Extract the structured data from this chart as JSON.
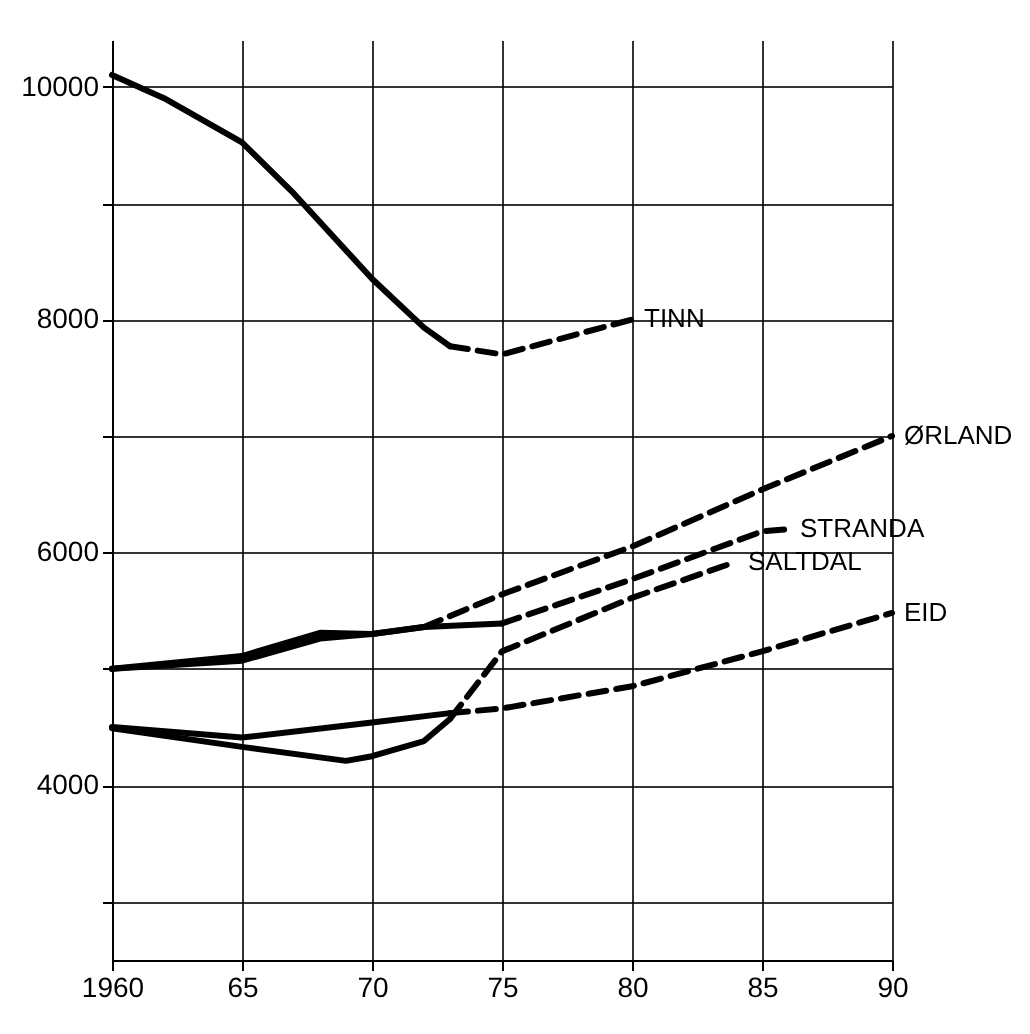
{
  "chart_data": {
    "type": "line",
    "xlim": [
      1960,
      1990
    ],
    "xticks": [
      {
        "value": 1960,
        "label": "1960"
      },
      {
        "value": 1965,
        "label": "65"
      },
      {
        "value": 1970,
        "label": "70"
      },
      {
        "value": 1975,
        "label": "75"
      },
      {
        "value": 1980,
        "label": "80"
      },
      {
        "value": 1985,
        "label": "85"
      },
      {
        "value": 1990,
        "label": "90"
      }
    ],
    "ylim": [
      2500,
      10400
    ],
    "yticks": [
      {
        "value": 3000,
        "label": null
      },
      4000,
      {
        "value": 5000,
        "label": null
      },
      6000,
      {
        "value": 7000,
        "label": null
      },
      8000,
      {
        "value": 9000,
        "label": null
      },
      10000
    ],
    "grid": true,
    "marker": "none",
    "series": [
      {
        "color": "#000000",
        "line_style": "solid",
        "x": [
          1960,
          1962,
          1965,
          1967,
          1970,
          1972,
          1973
        ],
        "values": [
          10100,
          9900,
          9520,
          9080,
          8350,
          7930,
          7770
        ]
      },
      {
        "name": "TINN",
        "color": "#000000",
        "line_style": "dashed",
        "x": [
          1973,
          1975,
          1977,
          1980
        ],
        "values": [
          7770,
          7700,
          7820,
          8000
        ]
      },
      {
        "color": "#000000",
        "line_style": "solid",
        "x": [
          1960,
          1965,
          1968,
          1970,
          1972
        ],
        "values": [
          5000,
          5110,
          5310,
          5300,
          5360
        ]
      },
      {
        "name": "ØRLAND",
        "color": "#000000",
        "line_style": "dashed",
        "x": [
          1972,
          1975,
          1980,
          1985,
          1990
        ],
        "values": [
          5360,
          5640,
          6050,
          6540,
          7000
        ]
      },
      {
        "color": "#000000",
        "line_style": "solid",
        "x": [
          1960,
          1965,
          1968,
          1970,
          1972,
          1975
        ],
        "values": [
          5000,
          5070,
          5260,
          5300,
          5360,
          5390
        ]
      },
      {
        "name": "STRANDA",
        "color": "#000000",
        "line_style": "dashed",
        "x": [
          1975,
          1980,
          1985,
          1986
        ],
        "values": [
          5390,
          5770,
          6180,
          6200
        ]
      },
      {
        "color": "#000000",
        "line_style": "solid",
        "x": [
          1960,
          1965,
          1969,
          1970,
          1972,
          1973
        ],
        "values": [
          4490,
          4330,
          4210,
          4250,
          4380,
          4570
        ]
      },
      {
        "name": "SALTDAL",
        "color": "#000000",
        "line_style": "dashed",
        "x": [
          1973,
          1975,
          1980,
          1984
        ],
        "values": [
          4570,
          5150,
          5610,
          5920
        ]
      },
      {
        "color": "#000000",
        "line_style": "solid",
        "x": [
          1960,
          1965,
          1970,
          1973
        ],
        "values": [
          4500,
          4410,
          4540,
          4620
        ]
      },
      {
        "name": "EID",
        "color": "#000000",
        "line_style": "dashed",
        "x": [
          1973,
          1975,
          1980,
          1985,
          1990
        ],
        "values": [
          4620,
          4660,
          4850,
          5150,
          5480
        ]
      }
    ]
  }
}
